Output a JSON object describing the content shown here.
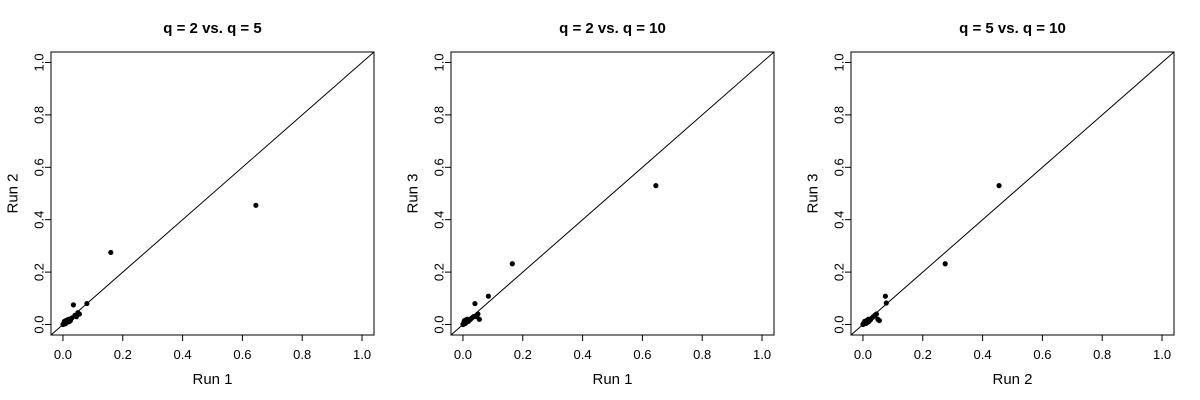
{
  "chart_data": [
    {
      "type": "scatter",
      "title": "q = 2 vs. q = 5",
      "xlabel": "Run 1",
      "ylabel": "Run 2",
      "xlim": [
        0,
        1.0
      ],
      "ylim": [
        0,
        1.0
      ],
      "xticks": [
        "0.0",
        "0.2",
        "0.4",
        "0.6",
        "0.8",
        "1.0"
      ],
      "yticks": [
        "0.0",
        "0.2",
        "0.4",
        "0.6",
        "0.8",
        "1.0"
      ],
      "reference_line": "y = x",
      "grid": false,
      "points": [
        {
          "x": 0.0,
          "y": 0.0
        },
        {
          "x": 0.003,
          "y": 0.005
        },
        {
          "x": 0.005,
          "y": 0.012
        },
        {
          "x": 0.008,
          "y": 0.003
        },
        {
          "x": 0.01,
          "y": 0.015
        },
        {
          "x": 0.012,
          "y": 0.008
        },
        {
          "x": 0.015,
          "y": 0.018
        },
        {
          "x": 0.018,
          "y": 0.01
        },
        {
          "x": 0.02,
          "y": 0.02
        },
        {
          "x": 0.022,
          "y": 0.012
        },
        {
          "x": 0.025,
          "y": 0.015
        },
        {
          "x": 0.03,
          "y": 0.025
        },
        {
          "x": 0.035,
          "y": 0.075
        },
        {
          "x": 0.04,
          "y": 0.035
        },
        {
          "x": 0.045,
          "y": 0.03
        },
        {
          "x": 0.05,
          "y": 0.045
        },
        {
          "x": 0.055,
          "y": 0.04
        },
        {
          "x": 0.08,
          "y": 0.08
        },
        {
          "x": 0.16,
          "y": 0.275
        },
        {
          "x": 0.645,
          "y": 0.455
        }
      ]
    },
    {
      "type": "scatter",
      "title": "q = 2 vs. q = 10",
      "xlabel": "Run 1",
      "ylabel": "Run 3",
      "xlim": [
        0,
        1.0
      ],
      "ylim": [
        0,
        1.0
      ],
      "xticks": [
        "0.0",
        "0.2",
        "0.4",
        "0.6",
        "0.8",
        "1.0"
      ],
      "yticks": [
        "0.0",
        "0.2",
        "0.4",
        "0.6",
        "0.8",
        "1.0"
      ],
      "reference_line": "y = x",
      "grid": false,
      "points": [
        {
          "x": 0.0,
          "y": 0.0
        },
        {
          "x": 0.003,
          "y": 0.008
        },
        {
          "x": 0.005,
          "y": 0.015
        },
        {
          "x": 0.008,
          "y": 0.004
        },
        {
          "x": 0.01,
          "y": 0.018
        },
        {
          "x": 0.012,
          "y": 0.01
        },
        {
          "x": 0.015,
          "y": 0.02
        },
        {
          "x": 0.018,
          "y": 0.012
        },
        {
          "x": 0.02,
          "y": 0.015
        },
        {
          "x": 0.025,
          "y": 0.02
        },
        {
          "x": 0.03,
          "y": 0.025
        },
        {
          "x": 0.035,
          "y": 0.03
        },
        {
          "x": 0.04,
          "y": 0.08
        },
        {
          "x": 0.045,
          "y": 0.03
        },
        {
          "x": 0.05,
          "y": 0.04
        },
        {
          "x": 0.055,
          "y": 0.02
        },
        {
          "x": 0.085,
          "y": 0.108
        },
        {
          "x": 0.165,
          "y": 0.232
        },
        {
          "x": 0.645,
          "y": 0.53
        }
      ]
    },
    {
      "type": "scatter",
      "title": "q = 5 vs. q = 10",
      "xlabel": "Run 2",
      "ylabel": "Run 3",
      "xlim": [
        0,
        1.0
      ],
      "ylim": [
        0,
        1.0
      ],
      "xticks": [
        "0.0",
        "0.2",
        "0.4",
        "0.6",
        "0.8",
        "1.0"
      ],
      "yticks": [
        "0.0",
        "0.2",
        "0.4",
        "0.6",
        "0.8",
        "1.0"
      ],
      "reference_line": "y = x",
      "grid": false,
      "points": [
        {
          "x": 0.0,
          "y": 0.0
        },
        {
          "x": 0.003,
          "y": 0.006
        },
        {
          "x": 0.006,
          "y": 0.012
        },
        {
          "x": 0.01,
          "y": 0.004
        },
        {
          "x": 0.012,
          "y": 0.015
        },
        {
          "x": 0.015,
          "y": 0.008
        },
        {
          "x": 0.018,
          "y": 0.02
        },
        {
          "x": 0.02,
          "y": 0.012
        },
        {
          "x": 0.025,
          "y": 0.018
        },
        {
          "x": 0.03,
          "y": 0.025
        },
        {
          "x": 0.035,
          "y": 0.03
        },
        {
          "x": 0.04,
          "y": 0.035
        },
        {
          "x": 0.045,
          "y": 0.04
        },
        {
          "x": 0.05,
          "y": 0.02
        },
        {
          "x": 0.055,
          "y": 0.015
        },
        {
          "x": 0.075,
          "y": 0.108
        },
        {
          "x": 0.078,
          "y": 0.082
        },
        {
          "x": 0.275,
          "y": 0.232
        },
        {
          "x": 0.455,
          "y": 0.53
        }
      ]
    }
  ]
}
